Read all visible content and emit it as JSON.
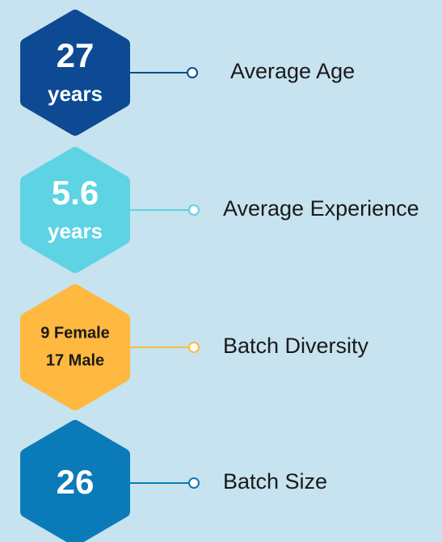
{
  "items": [
    {
      "lines": [
        "27",
        "years"
      ],
      "label": "Average Age",
      "color": "#0d4a93",
      "text_color": "#ffffff"
    },
    {
      "lines": [
        "5.6",
        "years"
      ],
      "label": "Average Experience",
      "color": "#5dd3e3",
      "text_color": "#ffffff"
    },
    {
      "lines": [
        "9 Female",
        "17 Male"
      ],
      "label": "Batch Diversity",
      "color": "#ffb840",
      "text_color": "#1a1a1a"
    },
    {
      "lines": [
        "26"
      ],
      "label": "Batch Size",
      "color": "#0a7bb8",
      "text_color": "#ffffff"
    }
  ]
}
